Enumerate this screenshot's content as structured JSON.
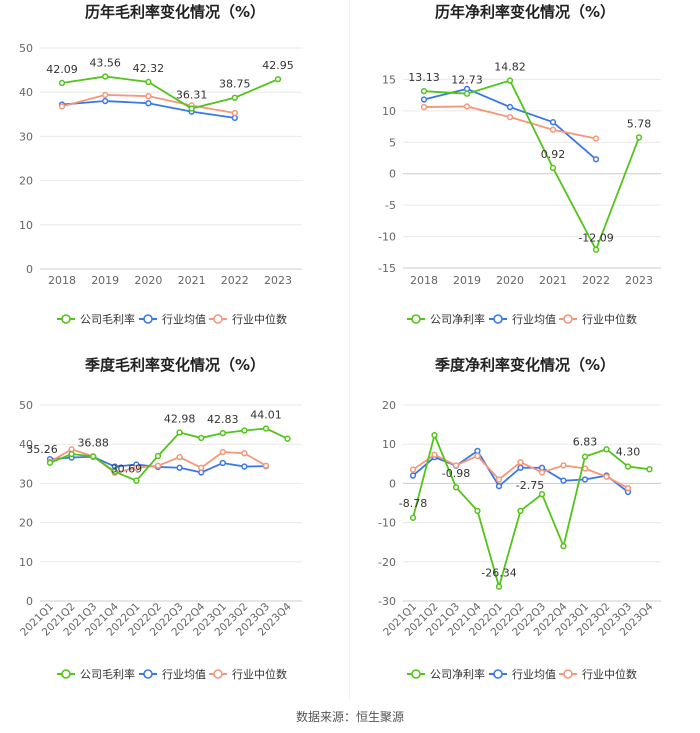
{
  "colors": {
    "company": "#52c41a",
    "industry_avg": "#3b78e7",
    "industry_median": "#f4977a",
    "grid": "#e8e8e8",
    "axis_text": "#666666",
    "title_text": "#222222"
  },
  "legend_labels_common": [
    "行业均值",
    "行业中位数"
  ],
  "source": "数据来源：恒生聚源",
  "chart_data": [
    {
      "type": "line",
      "title": "历年毛利率变化情况（%）",
      "categories": [
        "2018",
        "2019",
        "2020",
        "2021",
        "2022",
        "2023"
      ],
      "ylim": [
        0,
        50
      ],
      "yticks": [
        0,
        10,
        20,
        30,
        40,
        50
      ],
      "grid": true,
      "legend": "bottom",
      "series": [
        {
          "name": "公司毛利率",
          "key": "company",
          "values": [
            42.09,
            43.56,
            42.32,
            36.31,
            38.75,
            42.95
          ],
          "labels": [
            "42.09",
            "43.56",
            "42.32",
            "36.31",
            "38.75",
            "42.95"
          ]
        },
        {
          "name": "行业均值",
          "key": "industry_avg",
          "values": [
            37.2,
            38.0,
            37.5,
            35.6,
            34.2,
            null
          ]
        },
        {
          "name": "行业中位数",
          "key": "industry_median",
          "values": [
            36.8,
            39.4,
            39.1,
            37.0,
            35.3,
            null
          ]
        }
      ]
    },
    {
      "type": "line",
      "title": "历年净利率变化情况（%）",
      "categories": [
        "2018",
        "2019",
        "2020",
        "2021",
        "2022",
        "2023"
      ],
      "ylim": [
        -15,
        20
      ],
      "yticks": [
        -15,
        -10,
        -5,
        0,
        5,
        10,
        15
      ],
      "grid": true,
      "legend": "bottom",
      "series": [
        {
          "name": "公司净利率",
          "key": "company",
          "values": [
            13.13,
            12.73,
            14.82,
            0.92,
            -12.09,
            5.78
          ],
          "labels": [
            "13.13",
            "12.73",
            "14.82",
            "0.92",
            "-12.09",
            "5.78"
          ]
        },
        {
          "name": "行业均值",
          "key": "industry_avg",
          "values": [
            11.8,
            13.5,
            10.6,
            8.2,
            2.3,
            null
          ]
        },
        {
          "name": "行业中位数",
          "key": "industry_median",
          "values": [
            10.6,
            10.7,
            9.0,
            7.0,
            5.6,
            null
          ]
        }
      ]
    },
    {
      "type": "line",
      "title": "季度毛利率变化情况（%）",
      "categories": [
        "2021Q1",
        "2021Q2",
        "2021Q3",
        "2021Q4",
        "2022Q1",
        "2022Q2",
        "2022Q3",
        "2022Q4",
        "2023Q1",
        "2023Q2",
        "2023Q3",
        "2023Q4"
      ],
      "ylim": [
        0,
        50
      ],
      "yticks": [
        0,
        10,
        20,
        30,
        40,
        50
      ],
      "grid": true,
      "legend": "bottom",
      "series": [
        {
          "name": "公司毛利率",
          "key": "company",
          "values": [
            35.26,
            37.5,
            36.88,
            33.0,
            30.69,
            37.0,
            42.98,
            41.6,
            42.83,
            43.5,
            44.01,
            41.4
          ],
          "labels": [
            "35.26",
            null,
            "36.88",
            null,
            "30.69",
            null,
            "42.98",
            null,
            "42.83",
            null,
            "44.01",
            null
          ]
        },
        {
          "name": "行业均值",
          "key": "industry_avg",
          "values": [
            36.2,
            36.6,
            36.8,
            34.3,
            34.8,
            34.2,
            34.0,
            32.8,
            35.2,
            34.3,
            34.4,
            null
          ]
        },
        {
          "name": "行业中位数",
          "key": "industry_median",
          "values": [
            35.5,
            38.7,
            36.9,
            32.7,
            34.0,
            34.5,
            36.7,
            34.0,
            38.0,
            37.7,
            34.5,
            null
          ]
        }
      ]
    },
    {
      "type": "line",
      "title": "季度净利率变化情况（%）",
      "categories": [
        "2021Q1",
        "2021Q2",
        "2021Q3",
        "2021Q4",
        "2022Q1",
        "2022Q2",
        "2022Q3",
        "2022Q4",
        "2023Q1",
        "2023Q2",
        "2023Q3",
        "2023Q4"
      ],
      "ylim": [
        -30,
        20
      ],
      "yticks": [
        -30,
        -20,
        -10,
        0,
        10,
        20
      ],
      "grid": true,
      "legend": "bottom",
      "series": [
        {
          "name": "公司净利率",
          "key": "company",
          "values": [
            -8.78,
            12.3,
            -0.98,
            -7.0,
            -26.34,
            -7.0,
            -2.75,
            -16.0,
            6.83,
            8.7,
            4.3,
            3.6
          ],
          "labels": [
            "-8.78",
            null,
            "-0.98",
            null,
            "-26.34",
            null,
            "-2.75",
            null,
            "6.83",
            null,
            "4.30",
            null
          ]
        },
        {
          "name": "行业均值",
          "key": "industry_avg",
          "values": [
            2.0,
            6.7,
            4.5,
            8.3,
            -0.7,
            4.0,
            4.0,
            0.7,
            1.0,
            2.0,
            -2.2,
            null
          ]
        },
        {
          "name": "行业中位数",
          "key": "industry_median",
          "values": [
            3.5,
            7.3,
            4.6,
            7.0,
            1.0,
            5.4,
            2.8,
            4.6,
            3.8,
            1.7,
            -1.2,
            null
          ]
        }
      ]
    }
  ]
}
